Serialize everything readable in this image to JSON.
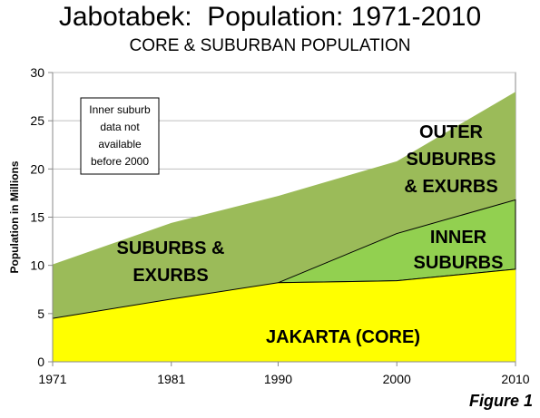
{
  "title": "Jabotabek:  Population: 1971-2010",
  "subtitle": "CORE & SUBURBAN POPULATION",
  "figure_label": "Figure 1",
  "colors": {
    "core": "#ffff00",
    "inner_suburbs": "#92d050",
    "outer_suburbs": "#9bbb59",
    "outline": "#000000",
    "grid": "#bfbfbf"
  },
  "chart_data": {
    "type": "area",
    "stacked": true,
    "x": [
      1971,
      1981,
      1990,
      2000,
      2010
    ],
    "ylabel": "Population in Millions",
    "xlabel": "",
    "ylim": [
      0,
      30
    ],
    "yticks": [
      0,
      5,
      10,
      15,
      20,
      25,
      30
    ],
    "grid": "horizontal",
    "series": [
      {
        "key": "core",
        "values": [
          4.5,
          6.5,
          8.2,
          8.4,
          9.6
        ]
      },
      {
        "key": "inner_suburbs",
        "values": [
          null,
          null,
          0,
          4.9,
          7.2
        ]
      },
      {
        "key": "outer_suburbs",
        "values": [
          5.6,
          7.9,
          9.0,
          7.5,
          11.2
        ]
      }
    ],
    "totals": [
      10.1,
      14.4,
      17.2,
      20.8,
      28.0
    ],
    "area_labels": [
      {
        "key": "suburbs_exurbs",
        "lines": [
          "SUBURBS &",
          "EXURBS"
        ]
      },
      {
        "key": "outer",
        "lines": [
          "OUTER",
          "SUBURBS",
          "& EXURBS"
        ]
      },
      {
        "key": "inner",
        "lines": [
          "INNER",
          "SUBURBS"
        ]
      },
      {
        "key": "core",
        "lines": [
          "JAKARTA (CORE)"
        ]
      }
    ],
    "annotation": [
      "Inner suburb",
      "data not",
      "available",
      "before 2000"
    ]
  }
}
